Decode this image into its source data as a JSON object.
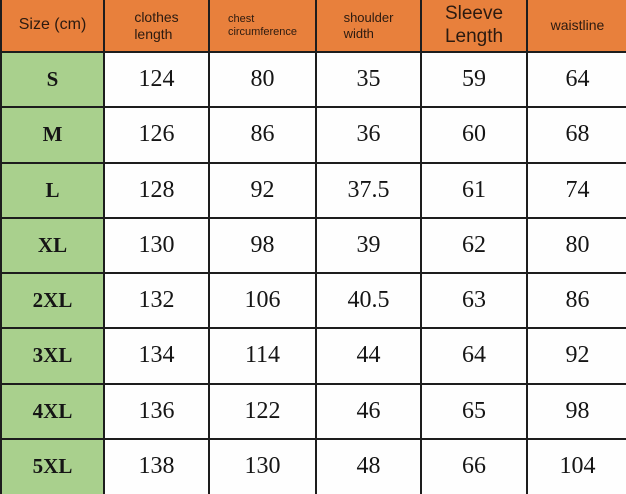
{
  "chart_data": {
    "type": "table",
    "corner_header": "Size (cm)",
    "columns": [
      "clothes\nlength",
      "chest\ncircumference",
      "shoulder\nwidth",
      "Sleeve\nLength",
      "waistline"
    ],
    "rows": [
      {
        "size": "S",
        "values": [
          124,
          80,
          35,
          59,
          64
        ]
      },
      {
        "size": "M",
        "values": [
          126,
          86,
          36,
          60,
          68
        ]
      },
      {
        "size": "L",
        "values": [
          128,
          92,
          37.5,
          61,
          74
        ]
      },
      {
        "size": "XL",
        "values": [
          130,
          98,
          39,
          62,
          80
        ]
      },
      {
        "size": "2XL",
        "values": [
          132,
          106,
          40.5,
          63,
          86
        ]
      },
      {
        "size": "3XL",
        "values": [
          134,
          114,
          44,
          64,
          92
        ]
      },
      {
        "size": "4XL",
        "values": [
          136,
          122,
          46,
          65,
          98
        ]
      },
      {
        "size": "5XL",
        "values": [
          138,
          130,
          48,
          66,
          104
        ]
      }
    ]
  },
  "colors": {
    "header_bg": "#e8803c",
    "size_column_bg": "#a9d08d",
    "grid_line": "#1d1d1d",
    "header_text": "#2b1a10",
    "value_text": "#151515"
  }
}
